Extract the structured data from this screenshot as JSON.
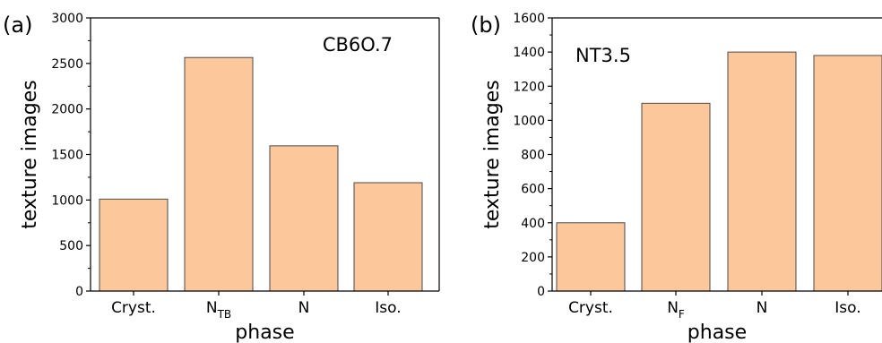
{
  "chart_data": [
    {
      "type": "bar",
      "panel_label": "(a)",
      "annotation": "CB6O.7",
      "categories": [
        {
          "main": "Cryst.",
          "sub": ""
        },
        {
          "main": "N",
          "sub": "TB"
        },
        {
          "main": "N",
          "sub": ""
        },
        {
          "main": "Iso.",
          "sub": ""
        }
      ],
      "values": [
        1010,
        2565,
        1595,
        1190
      ],
      "xlabel": "phase",
      "ylabel": "texture images",
      "ylim": [
        0,
        3000
      ],
      "yticks": [
        0,
        500,
        1000,
        1500,
        2000,
        2500,
        3000
      ],
      "bar_color": "#fbc79b",
      "edge_color": "#4a4a4a",
      "grid": false
    },
    {
      "type": "bar",
      "panel_label": "(b)",
      "annotation": "NT3.5",
      "categories": [
        {
          "main": "Cryst.",
          "sub": ""
        },
        {
          "main": "N",
          "sub": "F"
        },
        {
          "main": "N",
          "sub": ""
        },
        {
          "main": "Iso.",
          "sub": ""
        }
      ],
      "values": [
        400,
        1100,
        1400,
        1380
      ],
      "xlabel": "phase",
      "ylabel": "texture images",
      "ylim": [
        0,
        1600
      ],
      "yticks": [
        0,
        200,
        400,
        600,
        800,
        1000,
        1200,
        1400,
        1600
      ],
      "bar_color": "#fbc79b",
      "edge_color": "#4a4a4a",
      "grid": false
    }
  ]
}
